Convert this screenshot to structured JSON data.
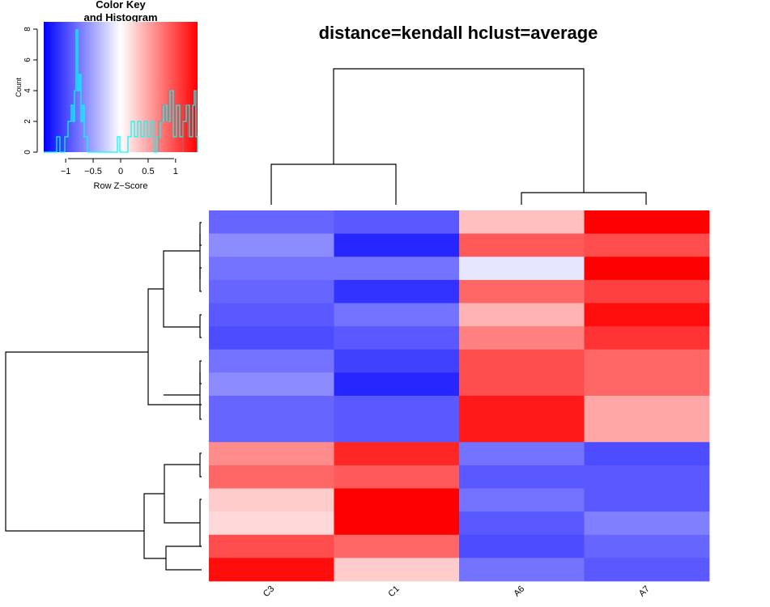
{
  "title": "distance=kendall  hclust=average",
  "color_key": {
    "title_line1": "Color Key",
    "title_line2": "and Histogram",
    "xlabel": "Row Z−Score",
    "ylabel": "Count",
    "x_ticks": [
      "−1",
      "−0.5",
      "0",
      "0.5",
      "1"
    ],
    "y_ticks": [
      "0",
      "2",
      "4",
      "6",
      "8"
    ]
  },
  "colors": {
    "low": "#0000FF",
    "mid": "#FFFFFF",
    "high": "#FF0000",
    "histogram_line": "#00FFFF",
    "dendrogram": "#000000"
  },
  "chart_data": {
    "type": "heatmap",
    "columns": [
      "C3",
      "C1",
      "A6",
      "A7"
    ],
    "row_count": 16,
    "row_heights": [
      1,
      1,
      1,
      1,
      1,
      1,
      1,
      1,
      2,
      1,
      1,
      1,
      1,
      1,
      1
    ],
    "values": [
      [
        -0.6,
        -0.65,
        0.25,
        1.0
      ],
      [
        -0.45,
        -0.85,
        0.65,
        0.7
      ],
      [
        -0.55,
        -0.55,
        -0.1,
        1.0
      ],
      [
        -0.6,
        -0.8,
        0.6,
        0.75
      ],
      [
        -0.65,
        -0.55,
        0.3,
        0.95
      ],
      [
        -0.7,
        -0.65,
        0.5,
        0.8
      ],
      [
        -0.55,
        -0.75,
        0.7,
        0.6
      ],
      [
        -0.45,
        -0.85,
        0.7,
        0.6
      ],
      [
        -0.6,
        -0.65,
        0.9,
        0.35
      ],
      [
        0.45,
        0.85,
        -0.55,
        -0.7
      ],
      [
        0.6,
        0.65,
        -0.65,
        -0.65
      ],
      [
        0.2,
        1.0,
        -0.55,
        -0.65
      ],
      [
        0.15,
        1.0,
        -0.65,
        -0.5
      ],
      [
        0.7,
        0.6,
        -0.7,
        -0.6
      ],
      [
        0.95,
        0.2,
        -0.55,
        -0.65
      ]
    ],
    "color_key_range": [
      -1.4,
      1.4
    ],
    "histogram_count_range": [
      0,
      8
    ]
  }
}
